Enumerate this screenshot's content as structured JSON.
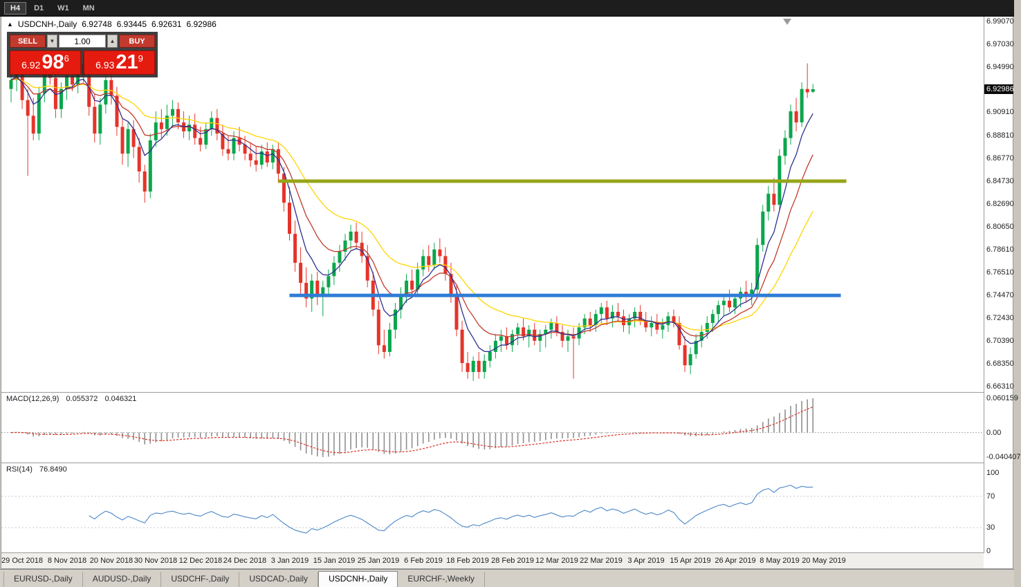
{
  "toolbar": {
    "timeframes": [
      "H4",
      "D1",
      "W1",
      "MN"
    ],
    "active_timeframe": "H4"
  },
  "chart_title": {
    "collapse_arrow": "▲",
    "symbol": "USDCNH-,Daily",
    "open": "6.92748",
    "high": "6.93445",
    "low": "6.92631",
    "close": "6.92986"
  },
  "one_click_panel": {
    "sell_label": "SELL",
    "buy_label": "BUY",
    "volume": "1.00",
    "sell_price": {
      "small": "6.92",
      "big": "98",
      "sup": "6"
    },
    "buy_price": {
      "small": "6.93",
      "big": "21",
      "sup": "9"
    },
    "button_color": "#c23a2e",
    "tile_color": "#e51b10"
  },
  "indicator_labels": {
    "macd": {
      "name": "MACD(12,26,9)",
      "main_value": "0.055372",
      "signal_value": "0.046321"
    },
    "rsi": {
      "name": "RSI(14)",
      "value": "76.8490"
    }
  },
  "price_axis": {
    "ticks": [
      "6.99070",
      "6.97030",
      "6.94990",
      "6.90910",
      "6.88810",
      "6.86770",
      "6.84730",
      "6.82690",
      "6.80650",
      "6.78610",
      "6.76510",
      "6.74470",
      "6.72430",
      "6.70390",
      "6.68350",
      "6.66310"
    ],
    "current_price_tag": "6.92986",
    "tag_background": "#0b0b0b"
  },
  "macd_axis": {
    "max_label": "0.060159",
    "zero_label": "0.00",
    "min_label": "-0.040407"
  },
  "rsi_axis": {
    "ticks": [
      "100",
      "70",
      "30",
      "0"
    ]
  },
  "time_axis": {
    "labels": [
      {
        "text": "29 Oct 2018",
        "bar": 2
      },
      {
        "text": "8 Nov 2018",
        "bar": 10
      },
      {
        "text": "20 Nov 2018",
        "bar": 18
      },
      {
        "text": "30 Nov 2018",
        "bar": 26
      },
      {
        "text": "12 Dec 2018",
        "bar": 34
      },
      {
        "text": "24 Dec 2018",
        "bar": 42
      },
      {
        "text": "3 Jan 2019",
        "bar": 50
      },
      {
        "text": "15 Jan 2019",
        "bar": 58
      },
      {
        "text": "25 Jan 2019",
        "bar": 66
      },
      {
        "text": "6 Feb 2019",
        "bar": 74
      },
      {
        "text": "18 Feb 2019",
        "bar": 82
      },
      {
        "text": "28 Feb 2019",
        "bar": 90
      },
      {
        "text": "12 Mar 2019",
        "bar": 98
      },
      {
        "text": "22 Mar 2019",
        "bar": 106
      },
      {
        "text": "3 Apr 2019",
        "bar": 114
      },
      {
        "text": "15 Apr 2019",
        "bar": 122
      },
      {
        "text": "26 Apr 2019",
        "bar": 130
      },
      {
        "text": "8 May 2019",
        "bar": 138
      },
      {
        "text": "20 May 2019",
        "bar": 146
      }
    ]
  },
  "bottom_tabs": {
    "items": [
      "EURUSD-,Daily",
      "AUDUSD-,Daily",
      "USDCHF-,Daily",
      "USDCAD-,Daily",
      "USDCNH-,Daily",
      "EURCHF-,Weekly"
    ],
    "active_index": 4
  },
  "chart_data": {
    "type": "candlestick",
    "title": "USDCNH-,Daily",
    "ohlc_current": {
      "open": 6.92748,
      "high": 6.93445,
      "low": 6.92631,
      "close": 6.92986
    },
    "price_range": {
      "max": 6.995,
      "min": 6.658
    },
    "grid": false,
    "legend_position": "none",
    "candle_colors": {
      "up": "#0aa64c",
      "down": "#e5342a"
    },
    "candles": [
      [
        6.93,
        6.945,
        6.918,
        6.938
      ],
      [
        6.938,
        6.956,
        6.928,
        6.95
      ],
      [
        6.95,
        6.958,
        6.912,
        6.92
      ],
      [
        6.92,
        6.93,
        6.852,
        6.906
      ],
      [
        6.906,
        6.922,
        6.884,
        6.89
      ],
      [
        6.89,
        6.932,
        6.884,
        6.926
      ],
      [
        6.926,
        6.95,
        6.918,
        6.944
      ],
      [
        6.944,
        6.956,
        6.934,
        6.94
      ],
      [
        6.94,
        6.948,
        6.904,
        6.912
      ],
      [
        6.912,
        6.936,
        6.904,
        6.93
      ],
      [
        6.93,
        6.948,
        6.92,
        6.942
      ],
      [
        6.942,
        6.952,
        6.928,
        6.934
      ],
      [
        6.934,
        6.958,
        6.926,
        6.952
      ],
      [
        6.952,
        6.96,
        6.936,
        6.942
      ],
      [
        6.942,
        6.95,
        6.906,
        6.914
      ],
      [
        6.914,
        6.926,
        6.882,
        6.89
      ],
      [
        6.89,
        6.922,
        6.88,
        6.916
      ],
      [
        6.916,
        6.944,
        6.908,
        6.938
      ],
      [
        6.938,
        6.948,
        6.916,
        6.924
      ],
      [
        6.924,
        6.932,
        6.888,
        6.896
      ],
      [
        6.896,
        6.904,
        6.862,
        6.872
      ],
      [
        6.872,
        6.9,
        6.86,
        6.894
      ],
      [
        6.894,
        6.902,
        6.868,
        6.878
      ],
      [
        6.878,
        6.886,
        6.846,
        6.856
      ],
      [
        6.856,
        6.862,
        6.828,
        6.838
      ],
      [
        6.838,
        6.89,
        6.832,
        6.884
      ],
      [
        6.884,
        6.91,
        6.878,
        6.9
      ],
      [
        6.9,
        6.912,
        6.886,
        6.894
      ],
      [
        6.894,
        6.916,
        6.888,
        6.906
      ],
      [
        6.906,
        6.92,
        6.896,
        6.912
      ],
      [
        6.912,
        6.918,
        6.894,
        6.9
      ],
      [
        6.9,
        6.91,
        6.886,
        6.892
      ],
      [
        6.892,
        6.906,
        6.884,
        6.898
      ],
      [
        6.898,
        6.908,
        6.88,
        6.886
      ],
      [
        6.886,
        6.896,
        6.874,
        6.88
      ],
      [
        6.88,
        6.9,
        6.876,
        6.894
      ],
      [
        6.894,
        6.91,
        6.888,
        6.904
      ],
      [
        6.904,
        6.912,
        6.884,
        6.89
      ],
      [
        6.89,
        6.898,
        6.87,
        6.876
      ],
      [
        6.876,
        6.888,
        6.866,
        6.872
      ],
      [
        6.872,
        6.892,
        6.866,
        6.886
      ],
      [
        6.886,
        6.896,
        6.874,
        6.88
      ],
      [
        6.88,
        6.888,
        6.866,
        6.872
      ],
      [
        6.872,
        6.882,
        6.86,
        6.866
      ],
      [
        6.866,
        6.878,
        6.856,
        6.862
      ],
      [
        6.862,
        6.88,
        6.858,
        6.874
      ],
      [
        6.874,
        6.882,
        6.86,
        6.864
      ],
      [
        6.864,
        6.88,
        6.858,
        6.876
      ],
      [
        6.876,
        6.882,
        6.846,
        6.854
      ],
      [
        6.854,
        6.86,
        6.82,
        6.828
      ],
      [
        6.828,
        6.842,
        6.794,
        6.8
      ],
      [
        6.8,
        6.812,
        6.766,
        6.774
      ],
      [
        6.774,
        6.788,
        6.746,
        6.756
      ],
      [
        6.756,
        6.77,
        6.734,
        6.742
      ],
      [
        6.742,
        6.764,
        6.73,
        6.758
      ],
      [
        6.758,
        6.766,
        6.736,
        6.744
      ],
      [
        6.744,
        6.758,
        6.726,
        6.752
      ],
      [
        6.752,
        6.768,
        6.744,
        6.762
      ],
      [
        6.762,
        6.78,
        6.754,
        6.774
      ],
      [
        6.774,
        6.79,
        6.766,
        6.784
      ],
      [
        6.784,
        6.8,
        6.776,
        6.794
      ],
      [
        6.794,
        6.808,
        6.786,
        6.802
      ],
      [
        6.802,
        6.81,
        6.786,
        6.792
      ],
      [
        6.792,
        6.802,
        6.774,
        6.78
      ],
      [
        6.78,
        6.79,
        6.752,
        6.758
      ],
      [
        6.758,
        6.766,
        6.726,
        6.732
      ],
      [
        6.732,
        6.74,
        6.692,
        6.7
      ],
      [
        6.7,
        6.714,
        6.688,
        6.694
      ],
      [
        6.694,
        6.72,
        6.69,
        6.714
      ],
      [
        6.714,
        6.738,
        6.706,
        6.732
      ],
      [
        6.732,
        6.752,
        6.724,
        6.746
      ],
      [
        6.746,
        6.764,
        6.738,
        6.758
      ],
      [
        6.758,
        6.768,
        6.744,
        6.75
      ],
      [
        6.75,
        6.774,
        6.746,
        6.768
      ],
      [
        6.768,
        6.786,
        6.762,
        6.78
      ],
      [
        6.78,
        6.79,
        6.766,
        6.772
      ],
      [
        6.772,
        6.792,
        6.768,
        6.786
      ],
      [
        6.786,
        6.796,
        6.774,
        6.78
      ],
      [
        6.78,
        6.788,
        6.758,
        6.764
      ],
      [
        6.764,
        6.774,
        6.738,
        6.744
      ],
      [
        6.744,
        6.754,
        6.708,
        6.714
      ],
      [
        6.714,
        6.722,
        6.676,
        6.684
      ],
      [
        6.684,
        6.694,
        6.67,
        6.676
      ],
      [
        6.676,
        6.69,
        6.668,
        6.686
      ],
      [
        6.686,
        6.694,
        6.67,
        6.676
      ],
      [
        6.676,
        6.692,
        6.67,
        6.686
      ],
      [
        6.686,
        6.7,
        6.68,
        6.694
      ],
      [
        6.694,
        6.71,
        6.688,
        6.704
      ],
      [
        6.704,
        6.714,
        6.694,
        6.708
      ],
      [
        6.708,
        6.716,
        6.696,
        6.7
      ],
      [
        6.7,
        6.714,
        6.694,
        6.71
      ],
      [
        6.71,
        6.72,
        6.7,
        6.716
      ],
      [
        6.716,
        6.724,
        6.704,
        6.708
      ],
      [
        6.708,
        6.718,
        6.698,
        6.714
      ],
      [
        6.714,
        6.72,
        6.7,
        6.704
      ],
      [
        6.704,
        6.714,
        6.694,
        6.71
      ],
      [
        6.71,
        6.718,
        6.698,
        6.714
      ],
      [
        6.714,
        6.724,
        6.706,
        6.72
      ],
      [
        6.72,
        6.726,
        6.708,
        6.712
      ],
      [
        6.712,
        6.718,
        6.698,
        6.704
      ],
      [
        6.704,
        6.714,
        6.694,
        6.708
      ],
      [
        6.708,
        6.716,
        6.67,
        6.706
      ],
      [
        6.706,
        6.72,
        6.7,
        6.716
      ],
      [
        6.716,
        6.728,
        6.71,
        6.724
      ],
      [
        6.724,
        6.73,
        6.712,
        6.718
      ],
      [
        6.718,
        6.732,
        6.712,
        6.728
      ],
      [
        6.728,
        6.738,
        6.72,
        6.734
      ],
      [
        6.734,
        6.74,
        6.718,
        6.724
      ],
      [
        6.724,
        6.736,
        6.716,
        6.73
      ],
      [
        6.73,
        6.738,
        6.722,
        6.726
      ],
      [
        6.726,
        6.732,
        6.712,
        6.718
      ],
      [
        6.718,
        6.728,
        6.71,
        6.724
      ],
      [
        6.724,
        6.734,
        6.716,
        6.73
      ],
      [
        6.73,
        6.736,
        6.718,
        6.722
      ],
      [
        6.722,
        6.73,
        6.712,
        6.716
      ],
      [
        6.716,
        6.726,
        6.708,
        6.72
      ],
      [
        6.72,
        6.728,
        6.71,
        6.714
      ],
      [
        6.714,
        6.724,
        6.706,
        6.718
      ],
      [
        6.718,
        6.73,
        6.712,
        6.726
      ],
      [
        6.726,
        6.732,
        6.716,
        6.72
      ],
      [
        6.72,
        6.726,
        6.696,
        6.7
      ],
      [
        6.7,
        6.708,
        6.676,
        6.682
      ],
      [
        6.682,
        6.698,
        6.674,
        6.692
      ],
      [
        6.692,
        6.71,
        6.688,
        6.704
      ],
      [
        6.704,
        6.718,
        6.698,
        6.712
      ],
      [
        6.712,
        6.726,
        6.706,
        6.72
      ],
      [
        6.72,
        6.732,
        6.712,
        6.728
      ],
      [
        6.728,
        6.74,
        6.72,
        6.736
      ],
      [
        6.736,
        6.746,
        6.726,
        6.74
      ],
      [
        6.74,
        6.75,
        6.73,
        6.734
      ],
      [
        6.734,
        6.746,
        6.728,
        6.742
      ],
      [
        6.742,
        6.752,
        6.734,
        6.748
      ],
      [
        6.748,
        6.758,
        6.738,
        6.744
      ],
      [
        6.744,
        6.756,
        6.736,
        6.75
      ],
      [
        6.75,
        6.796,
        6.746,
        6.79
      ],
      [
        6.79,
        6.826,
        6.784,
        6.82
      ],
      [
        6.82,
        6.843,
        6.812,
        6.836
      ],
      [
        6.836,
        6.85,
        6.82,
        6.826
      ],
      [
        6.826,
        6.876,
        6.822,
        6.87
      ],
      [
        6.87,
        6.893,
        6.862,
        6.886
      ],
      [
        6.886,
        6.916,
        6.88,
        6.91
      ],
      [
        6.91,
        6.922,
        6.892,
        6.9
      ],
      [
        6.9,
        6.936,
        6.896,
        6.93
      ],
      [
        6.93,
        6.953,
        6.922,
        6.927
      ],
      [
        6.92748,
        6.93445,
        6.92631,
        6.92986
      ]
    ],
    "moving_averages": [
      {
        "name": "fast",
        "method": "ema",
        "period": 6,
        "color": "#2b2f8e"
      },
      {
        "name": "medium",
        "method": "ema",
        "period": 12,
        "color": "#c0392b"
      },
      {
        "name": "slow",
        "method": "ema",
        "period": 25,
        "color": "#ffd400"
      }
    ],
    "horizontal_lines": [
      {
        "price": 6.8473,
        "from_bar": 48,
        "to_bar": 150,
        "color": "#96a519",
        "width": 5
      },
      {
        "price": 6.7447,
        "from_bar": 50,
        "to_bar": 149,
        "color": "#2e7cd6",
        "width": 5
      }
    ],
    "indicators": {
      "macd": {
        "fast": 12,
        "slow": 26,
        "signal": 9,
        "current_main": 0.055372,
        "current_signal": 0.046321,
        "histogram_color": "#8f8f8f",
        "signal_color": "#d93025"
      },
      "rsi": {
        "period": 14,
        "current": 76.849,
        "line_color": "#4a86c8",
        "levels": [
          70,
          30
        ]
      }
    }
  }
}
